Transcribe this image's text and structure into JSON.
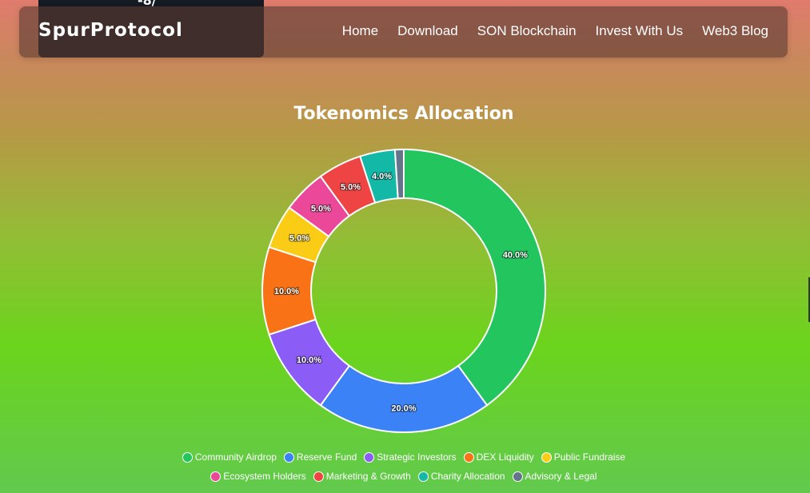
{
  "top_card": {
    "text": "-8/"
  },
  "navbar": {
    "brand": "SpurProtocol",
    "links": [
      "Home",
      "Download",
      "SON Blockchain",
      "Invest With Us",
      "Web3 Blog"
    ]
  },
  "chart_data": {
    "type": "pie",
    "variant": "doughnut",
    "title": "Tokenomics Allocation",
    "categories": [
      "Community Airdrop",
      "Reserve Fund",
      "Strategic Investors",
      "DEX Liquidity",
      "Public Fundraise",
      "Ecosystem Holders",
      "Marketing & Growth",
      "Charity Allocation",
      "Advisory & Legal"
    ],
    "values": [
      40.0,
      20.0,
      10.0,
      10.0,
      5.0,
      5.0,
      5.0,
      4.0,
      1.0
    ],
    "labels": [
      "40.0%",
      "20.0%",
      "10.0%",
      "10.0%",
      "5.0%",
      "5.0%",
      "5.0%",
      "4.0%",
      ""
    ],
    "colors": [
      "#22c55e",
      "#3b82f6",
      "#8b5cf6",
      "#f97316",
      "#facc15",
      "#ec4899",
      "#ef4444",
      "#14b8a6",
      "#64748b"
    ],
    "legend_position": "bottom"
  }
}
